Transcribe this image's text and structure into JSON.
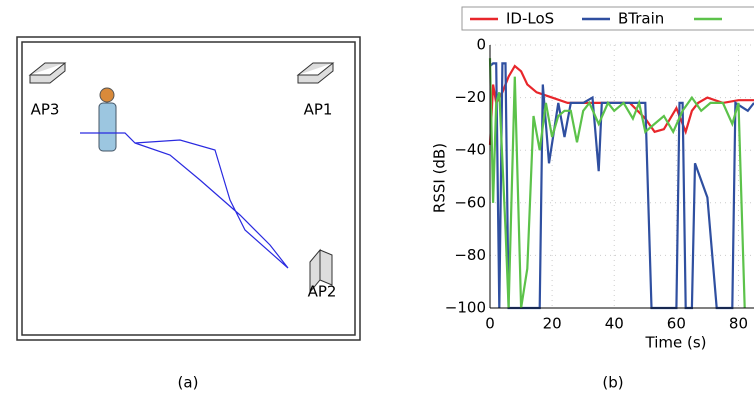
{
  "panel_a": {
    "labels": [
      "AP3",
      "AP1",
      "AP2"
    ],
    "caption": "(a)"
  },
  "chart_data": {
    "type": "line",
    "caption": "(b)",
    "xlabel": "Time (s)",
    "ylabel": "RSSI (dB)",
    "xlim": [
      0,
      85
    ],
    "ylim": [
      -100,
      0
    ],
    "xticks": [
      0,
      20,
      40,
      60,
      80
    ],
    "yticks": [
      {
        "value": 0,
        "label": "0"
      },
      {
        "value": -20,
        "label": "−20"
      },
      {
        "value": -40,
        "label": "−40"
      },
      {
        "value": -60,
        "label": "−60"
      },
      {
        "value": -80,
        "label": "−80"
      },
      {
        "value": -100,
        "label": "−100"
      }
    ],
    "grid": true,
    "legend": "top",
    "series": [
      {
        "name": "ID-LoS",
        "color": "#e8262b",
        "x": [
          0,
          1,
          2,
          4,
          6,
          8,
          10,
          12,
          15,
          20,
          25,
          30,
          40,
          45,
          50,
          53,
          56,
          60,
          63,
          65,
          67,
          70,
          75,
          80,
          85
        ],
        "values": [
          -38,
          -15,
          -22,
          -18,
          -12,
          -8,
          -10,
          -15,
          -18,
          -20,
          -22,
          -22,
          -22,
          -22,
          -28,
          -33,
          -32,
          -24,
          -33,
          -25,
          -22,
          -20,
          -22,
          -21,
          -21
        ]
      },
      {
        "name": "BTrain",
        "color": "#2f4fa0",
        "x": [
          0,
          1,
          2,
          3,
          4,
          5,
          6,
          16,
          17,
          19,
          22,
          24,
          26,
          30,
          33,
          35,
          36,
          40,
          45,
          50,
          52,
          60,
          61,
          62,
          63,
          65,
          66,
          70,
          73,
          78,
          79,
          83,
          85
        ],
        "values": [
          -8,
          -7,
          -7,
          -100,
          -7,
          -7,
          -100,
          -100,
          -15,
          -45,
          -22,
          -35,
          -22,
          -22,
          -20,
          -48,
          -22,
          -22,
          -22,
          -22,
          -100,
          -100,
          -22,
          -22,
          -100,
          -100,
          -45,
          -58,
          -100,
          -100,
          -22,
          -25,
          -22
        ]
      },
      {
        "name": null,
        "color": "#5cc24a",
        "x": [
          0,
          1,
          2,
          3,
          5,
          6,
          8,
          10,
          12,
          14,
          16,
          18,
          20,
          22,
          24,
          26,
          28,
          30,
          32,
          35,
          38,
          40,
          43,
          46,
          48,
          50,
          53,
          56,
          59,
          62,
          65,
          68,
          71,
          75,
          78,
          80,
          82
        ],
        "values": [
          -5,
          -60,
          -22,
          -18,
          -70,
          -100,
          -12,
          -100,
          -85,
          -27,
          -40,
          -22,
          -35,
          -27,
          -25,
          -25,
          -37,
          -25,
          -22,
          -30,
          -22,
          -25,
          -22,
          -28,
          -22,
          -33,
          -30,
          -27,
          -33,
          -25,
          -20,
          -25,
          -22,
          -22,
          -30,
          -22,
          -100
        ]
      }
    ]
  }
}
